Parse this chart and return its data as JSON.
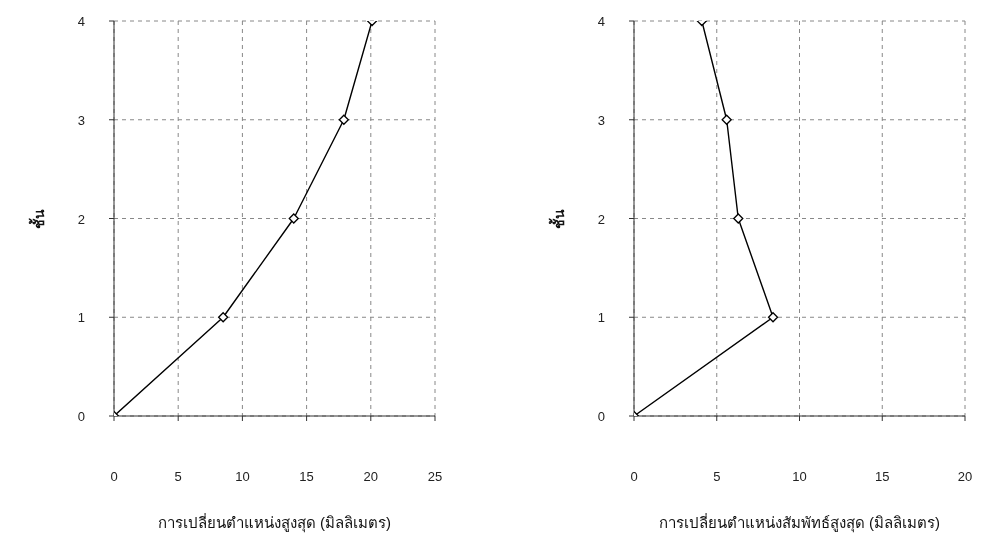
{
  "chart_data": [
    {
      "type": "line",
      "xlabel": "การเปลี่ยนตำแหน่งสูงสุด (มิลลิเมตร)",
      "ylabel": "ชั้น",
      "x": [
        0,
        8.5,
        14.0,
        17.9,
        20.1
      ],
      "series": [
        {
          "color": "#000000",
          "values": [
            0,
            1,
            2,
            3,
            4
          ]
        }
      ],
      "xlim": [
        0,
        25
      ],
      "xticks": [
        0,
        5,
        10,
        15,
        20,
        25
      ],
      "ylim": [
        0,
        4
      ],
      "yticks": [
        0,
        1,
        2,
        3,
        4
      ],
      "grid": true,
      "marker": "diamond",
      "line_style": "solid"
    },
    {
      "type": "line",
      "xlabel": "การเปลี่ยนตำแหน่งสัมพัทธ์สูงสุด (มิลลิเมตร)",
      "ylabel": "ชั้น",
      "x": [
        0,
        8.4,
        6.3,
        5.6,
        4.1
      ],
      "series": [
        {
          "color": "#000000",
          "values": [
            0,
            1,
            2,
            3,
            4
          ]
        }
      ],
      "xlim": [
        0,
        20
      ],
      "xticks": [
        0,
        5,
        10,
        15,
        20
      ],
      "ylim": [
        0,
        4
      ],
      "yticks": [
        0,
        1,
        2,
        3,
        4
      ],
      "grid": true,
      "marker": "diamond",
      "line_style": "solid"
    }
  ]
}
